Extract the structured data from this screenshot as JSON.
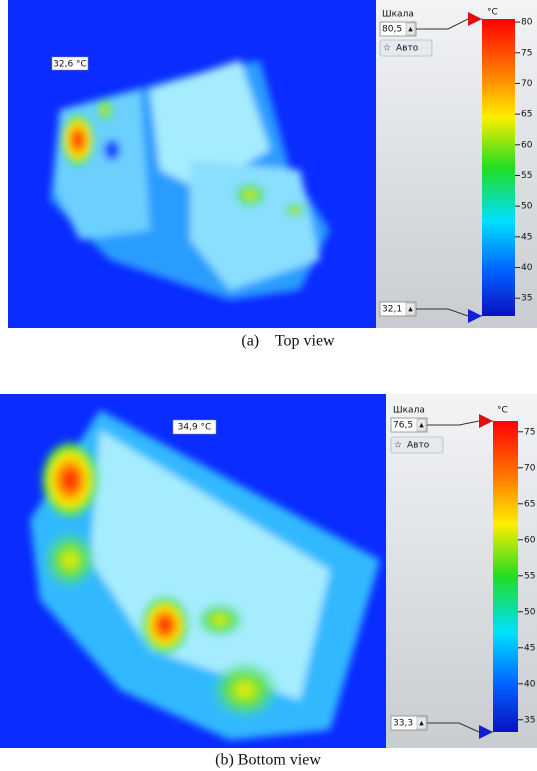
{
  "panels": [
    {
      "spot_label": "32,6 °C",
      "scale_title": "Шкала",
      "auto_button": "Авто",
      "unit": "°C",
      "scale_max": {
        "value": 80.5,
        "label": "80,5"
      },
      "scale_min": {
        "value": 32.1,
        "label": "32,1"
      },
      "ticks": [
        80,
        75,
        70,
        65,
        60,
        55,
        50,
        45,
        40,
        35
      ],
      "caption": "(a)    Top view"
    },
    {
      "spot_label": "34,9 °C",
      "scale_title": "Шкала",
      "auto_button": "Авто",
      "unit": "°C",
      "scale_max": {
        "value": 76.5,
        "label": "76,5"
      },
      "scale_min": {
        "value": 33.3,
        "label": "33,3"
      },
      "ticks": [
        75,
        70,
        65,
        60,
        55,
        50,
        45,
        40,
        35
      ],
      "caption": "(b) Bottom view"
    }
  ]
}
